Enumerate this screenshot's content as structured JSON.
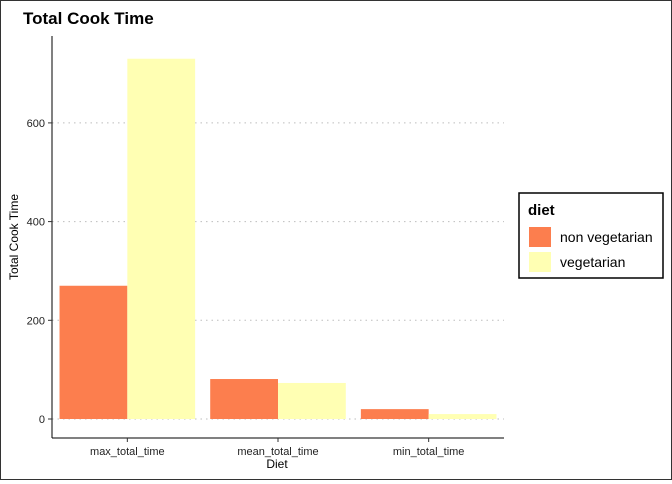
{
  "chart_data": {
    "type": "bar",
    "title": "Total Cook Time",
    "xlabel": "Diet",
    "ylabel": "Total Cook Time",
    "categories": [
      "max_total_time",
      "mean_total_time",
      "min_total_time"
    ],
    "series": [
      {
        "name": "non vegetarian",
        "color": "#FC7E4E",
        "values": [
          270,
          81,
          20
        ]
      },
      {
        "name": "vegetarian",
        "color": "#FFFFB3",
        "values": [
          730,
          73,
          10
        ]
      }
    ],
    "ylim": [
      0,
      770
    ],
    "yticks": [
      0,
      200,
      400,
      600
    ],
    "grid": "horizontal-dotted",
    "legend": {
      "title": "diet",
      "position": "right"
    }
  }
}
